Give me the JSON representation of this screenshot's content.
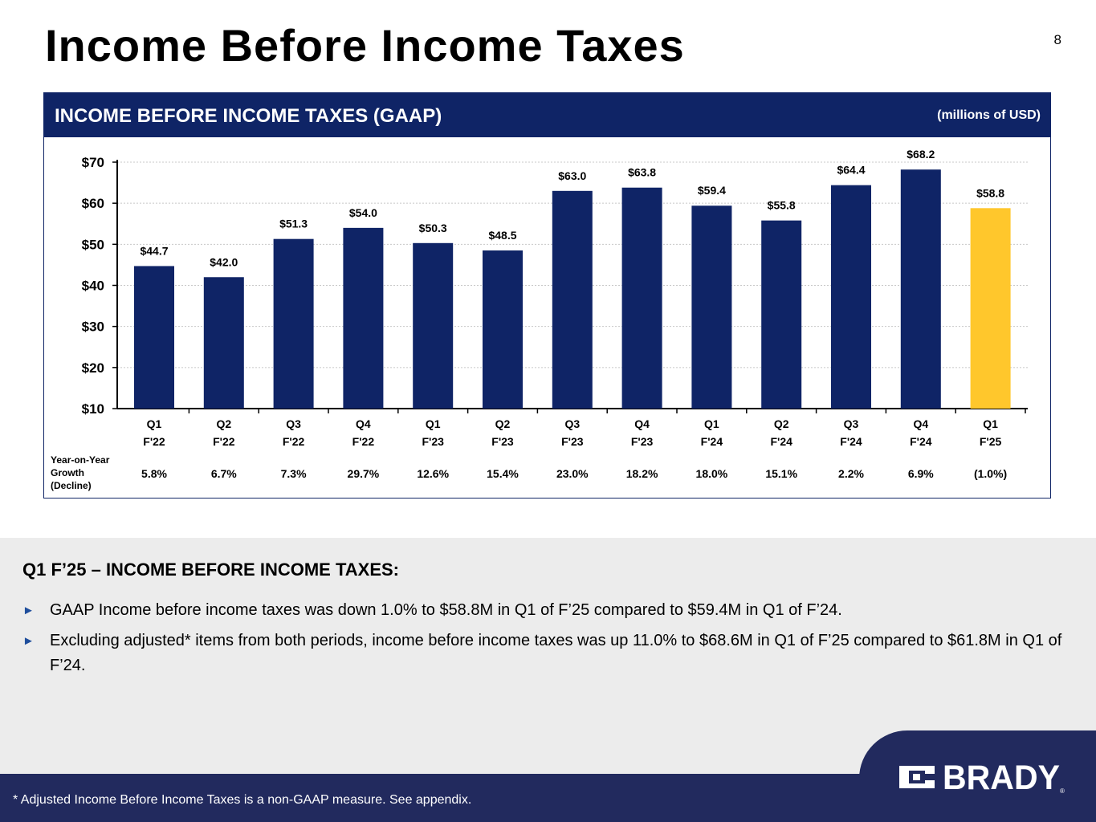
{
  "page": {
    "title": "Income Before Income Taxes",
    "number": "8"
  },
  "chart_box": {
    "title": "INCOME BEFORE INCOME TAXES (GAAP)",
    "units": "(millions of USD)"
  },
  "chart_data": {
    "type": "bar",
    "title": "INCOME BEFORE INCOME TAXES (GAAP)",
    "ylabel": "",
    "xlabel": "",
    "ylim": [
      10,
      70
    ],
    "yticks": [
      10,
      20,
      30,
      40,
      50,
      60,
      70
    ],
    "ytick_labels": [
      "$10",
      "$20",
      "$30",
      "$40",
      "$50",
      "$60",
      "$70"
    ],
    "categories": [
      [
        "Q1",
        "F'22"
      ],
      [
        "Q2",
        "F'22"
      ],
      [
        "Q3",
        "F'22"
      ],
      [
        "Q4",
        "F'22"
      ],
      [
        "Q1",
        "F'23"
      ],
      [
        "Q2",
        "F'23"
      ],
      [
        "Q3",
        "F'23"
      ],
      [
        "Q4",
        "F'23"
      ],
      [
        "Q1",
        "F'24"
      ],
      [
        "Q2",
        "F'24"
      ],
      [
        "Q3",
        "F'24"
      ],
      [
        "Q4",
        "F'24"
      ],
      [
        "Q1",
        "F'25"
      ]
    ],
    "values": [
      44.7,
      42.0,
      51.3,
      54.0,
      50.3,
      48.5,
      63.0,
      63.8,
      59.4,
      55.8,
      64.4,
      68.2,
      58.8
    ],
    "value_labels": [
      "$44.7",
      "$42.0",
      "$51.3",
      "$54.0",
      "$50.3",
      "$48.5",
      "$63.0",
      "$63.8",
      "$59.4",
      "$55.8",
      "$64.4",
      "$68.2",
      "$58.8"
    ],
    "colors": {
      "bar": "#0f2466",
      "highlight": "#ffc72c",
      "axis": "#000000",
      "grid": "#c8c8c8"
    },
    "highlight_index": 12,
    "grid": true,
    "growth_row": {
      "label": [
        "Year-on-Year",
        "Growth",
        "(Decline)"
      ],
      "values": [
        "5.8%",
        "6.7%",
        "7.3%",
        "29.7%",
        "12.6%",
        "15.4%",
        "23.0%",
        "18.2%",
        "18.0%",
        "15.1%",
        "2.2%",
        "6.9%",
        "(1.0%)"
      ]
    }
  },
  "summary": {
    "heading": "Q1 F’25 – INCOME BEFORE INCOME TAXES:",
    "bullets": [
      "GAAP Income before income taxes was down 1.0% to $58.8M in Q1 of F’25 compared to $59.4M in Q1 of F’24.",
      "Excluding adjusted* items from both periods, income before income taxes was up 11.0% to $68.6M in Q1 of F’25 compared to $61.8M in Q1 of F’24."
    ],
    "bullet_icon": "triangle-right-icon"
  },
  "footer": {
    "footnote": "* Adjusted Income Before Income Taxes is a non-GAAP measure.  See appendix.",
    "logo_text": "BRADY",
    "logo_mark": "®",
    "color": "#222a5e"
  }
}
